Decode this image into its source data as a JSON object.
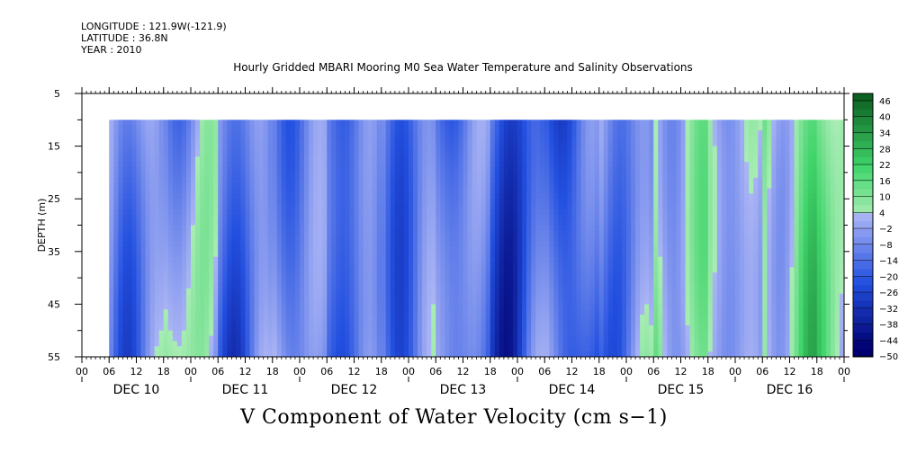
{
  "header": {
    "longitude": "LONGITUDE : 121.9W(-121.9)",
    "latitude": "LATITUDE : 36.8N",
    "year": "YEAR : 2010"
  },
  "title": "Hourly Gridded MBARI Mooring M0 Sea Water Temperature and Salinity Observations",
  "bottom_title": "V Component of Water Velocity (cm s−1)",
  "colors": {
    "blue_dark": "#2350e0",
    "blue_light": "#aab4f4",
    "green_light": "#a8ecb4",
    "green_mid": "#3fd46a",
    "green_dark": "#0a5a1e"
  },
  "chart_data": {
    "type": "heatmap",
    "ylabel": "DEPTH (m)",
    "yticks": [
      "5",
      "15",
      "25",
      "35",
      "45",
      "55"
    ],
    "ylim": [
      5,
      55
    ],
    "y_inverted": true,
    "data_depth_range": [
      10,
      55
    ],
    "xticks": [
      "00",
      "06",
      "12",
      "18",
      "00",
      "06",
      "12",
      "18",
      "00",
      "06",
      "12",
      "18",
      "00",
      "06",
      "12",
      "18",
      "00",
      "06",
      "12",
      "18",
      "00",
      "06",
      "12",
      "18",
      "00",
      "06",
      "12",
      "18",
      "00"
    ],
    "x_date_labels": [
      "DEC 10",
      "DEC 11",
      "DEC 12",
      "DEC 13",
      "DEC 14",
      "DEC 15",
      "DEC 16"
    ],
    "x_range_hours": [
      0,
      168
    ],
    "data_start_hour": 6,
    "colorbar": {
      "levels": [
        "46",
        "40",
        "34",
        "28",
        "22",
        "16",
        "10",
        "4",
        "−2",
        "−8",
        "−14",
        "−20",
        "−26",
        "−32",
        "−38",
        "−44",
        "−50"
      ],
      "min": -50,
      "max": 46,
      "step": 3
    },
    "column_profile_hourly_v": [
      {
        "hour_range": [
          6,
          18
        ],
        "note_value": -8
      },
      {
        "hour_range": [
          18,
          30
        ],
        "note_value": -6
      },
      {
        "hour_range": [
          30,
          42
        ],
        "note_value": -14
      },
      {
        "hour_range": [
          42,
          54
        ],
        "note_value": -10
      },
      {
        "hour_range": [
          54,
          66
        ],
        "note_value": -18
      },
      {
        "hour_range": [
          66,
          78
        ],
        "note_value": -12
      },
      {
        "hour_range": [
          78,
          90
        ],
        "note_value": -16
      },
      {
        "hour_range": [
          90,
          102
        ],
        "note_value": -22
      },
      {
        "hour_range": [
          102,
          114
        ],
        "note_value": -20
      },
      {
        "hour_range": [
          114,
          126
        ],
        "note_value": -12
      },
      {
        "hour_range": [
          126,
          138
        ],
        "note_value": 2
      },
      {
        "hour_range": [
          138,
          150
        ],
        "note_value": -6
      },
      {
        "hour_range": [
          150,
          162
        ],
        "note_value": 8
      },
      {
        "hour_range": [
          162,
          168
        ],
        "note_value": 4
      }
    ]
  }
}
